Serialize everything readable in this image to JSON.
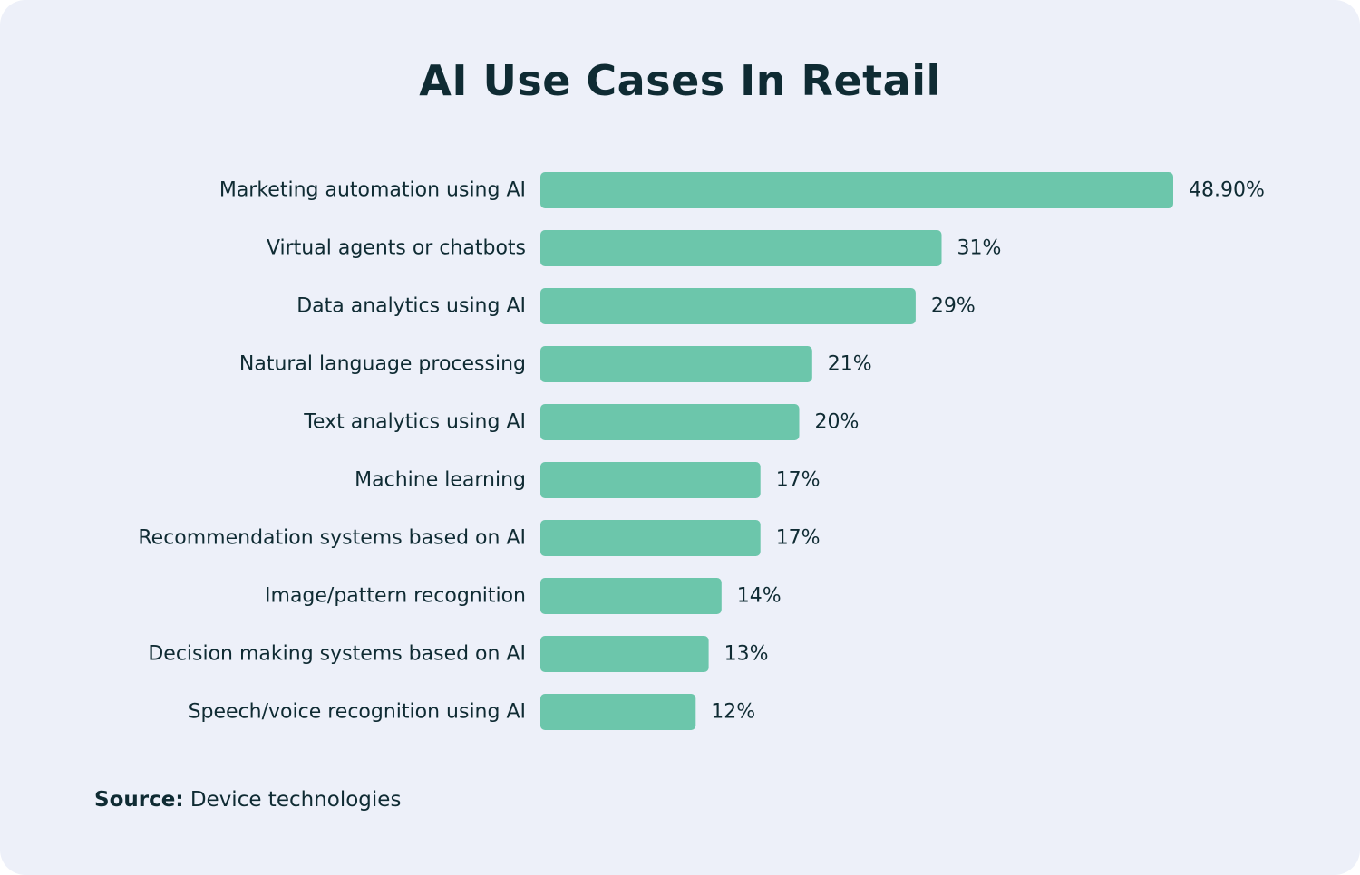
{
  "chart_data": {
    "type": "bar",
    "orientation": "horizontal",
    "title": "AI Use Cases In Retail",
    "categories": [
      "Marketing automation using AI",
      "Virtual agents or chatbots",
      "Data analytics using AI",
      "Natural language processing",
      "Text analytics using AI",
      "Machine learning",
      "Recommendation systems based on AI",
      "Image/pattern recognition",
      "Decision making systems based on AI",
      "Speech/voice recognition using AI"
    ],
    "values": [
      48.9,
      31,
      29,
      21,
      20,
      17,
      17,
      14,
      13,
      12
    ],
    "value_labels": [
      "48.90%",
      "31%",
      "29%",
      "21%",
      "20%",
      "17%",
      "17%",
      "14%",
      "13%",
      "12%"
    ],
    "xlabel": "",
    "ylabel": "",
    "xlim": [
      0,
      48.9
    ],
    "grid": false,
    "legend": "none",
    "bar_color": "#6cc6ab"
  },
  "source": {
    "prefix": "Source:",
    "text": " Device technologies"
  },
  "colors": {
    "background": "#edf0f9",
    "text": "#0f2b33",
    "bar": "#6cc6ab"
  }
}
